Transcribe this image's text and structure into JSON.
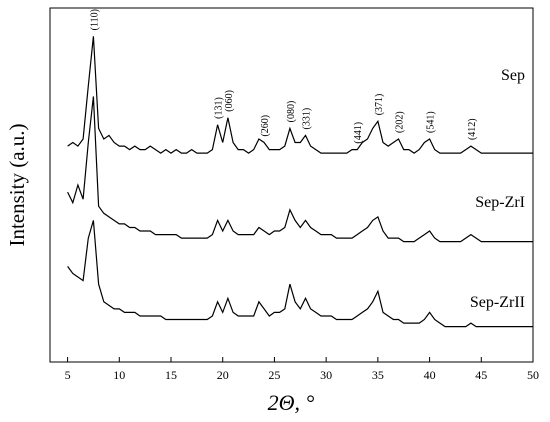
{
  "chart_data": {
    "type": "line",
    "x_label": "2Θ, °",
    "y_label": "Intensity (a.u.)",
    "x": [
      5,
      5.5,
      6,
      6.5,
      7,
      7.5,
      8,
      8.5,
      9,
      9.5,
      10,
      10.5,
      11,
      11.5,
      12,
      12.5,
      13,
      13.5,
      14,
      14.5,
      15,
      15.5,
      16,
      16.5,
      17,
      17.5,
      18,
      18.5,
      19,
      19.5,
      20,
      20.5,
      21,
      21.5,
      22,
      22.5,
      23,
      23.5,
      24,
      24.5,
      25,
      25.5,
      26,
      26.5,
      27,
      27.5,
      28,
      28.5,
      29,
      29.5,
      30,
      30.5,
      31,
      31.5,
      32,
      32.5,
      33,
      33.5,
      34,
      34.5,
      35,
      35.5,
      36,
      36.5,
      37,
      37.5,
      38,
      38.5,
      39,
      39.5,
      40,
      40.5,
      41,
      41.5,
      42,
      42.5,
      43,
      43.5,
      44,
      44.5,
      45,
      45.5,
      46,
      46.5,
      47,
      47.5,
      48,
      48.5,
      49,
      49.5,
      50
    ],
    "series": [
      {
        "name": "Sep",
        "color": "#000000",
        "values": [
          61,
          62,
          61,
          63,
          78,
          92,
          66,
          63,
          64,
          62,
          61,
          61,
          60,
          61,
          60,
          60,
          61,
          60,
          59,
          60,
          59,
          60,
          59,
          59,
          60,
          59,
          59,
          59,
          60,
          67,
          62,
          69,
          62,
          60,
          60,
          59,
          60,
          63,
          62,
          60,
          60,
          60,
          61,
          66,
          62,
          62,
          64,
          61,
          60,
          59,
          59,
          59,
          59,
          59,
          59,
          60,
          60,
          62,
          63,
          66,
          68,
          62,
          61,
          62,
          63,
          60,
          60,
          59,
          60,
          62,
          63,
          60,
          59,
          59,
          59,
          59,
          59,
          60,
          61,
          60,
          59,
          59,
          59,
          59,
          59,
          59,
          59,
          59,
          59,
          59,
          59
        ]
      },
      {
        "name": "Sep-ZrI",
        "color": "#000000",
        "values": [
          48,
          45,
          50,
          46,
          62,
          75,
          44,
          42,
          41,
          40,
          39,
          39,
          38,
          38,
          37,
          37,
          37,
          36,
          36,
          36,
          36,
          36,
          35,
          35,
          35,
          35,
          35,
          35,
          36,
          40,
          37,
          40,
          37,
          36,
          36,
          36,
          36,
          38,
          37,
          36,
          37,
          37,
          38,
          43,
          40,
          38,
          40,
          38,
          37,
          36,
          36,
          36,
          35,
          35,
          35,
          35,
          36,
          37,
          38,
          40,
          41,
          37,
          35,
          35,
          35,
          34,
          34,
          34,
          35,
          36,
          37,
          35,
          34,
          34,
          34,
          34,
          34,
          35,
          36,
          35,
          34,
          34,
          34,
          34,
          34,
          34,
          34,
          34,
          34,
          34,
          34
        ]
      },
      {
        "name": "Sep-ZrII",
        "color": "#000000",
        "values": [
          27,
          25,
          24,
          23,
          35,
          40,
          22,
          17,
          16,
          15,
          15,
          14,
          14,
          14,
          13,
          13,
          13,
          13,
          13,
          12,
          12,
          12,
          12,
          12,
          12,
          12,
          12,
          12,
          13,
          17,
          14,
          18,
          14,
          13,
          13,
          13,
          13,
          17,
          15,
          13,
          14,
          14,
          15,
          22,
          17,
          15,
          18,
          15,
          14,
          13,
          13,
          13,
          12,
          12,
          12,
          12,
          13,
          14,
          15,
          17,
          20,
          14,
          13,
          12,
          12,
          11,
          11,
          11,
          11,
          12,
          14,
          12,
          11,
          10,
          10,
          10,
          10,
          10,
          11,
          10,
          10,
          10,
          10,
          10,
          10,
          10,
          10,
          10,
          10,
          10,
          10
        ]
      }
    ],
    "annotations": [
      {
        "text": "(110)",
        "x": 7.5
      },
      {
        "text": "(131)",
        "x": 19.5
      },
      {
        "text": "(060)",
        "x": 20.5
      },
      {
        "text": "(260)",
        "x": 24
      },
      {
        "text": "(080)",
        "x": 26.5
      },
      {
        "text": "(331)",
        "x": 28
      },
      {
        "text": "(441)",
        "x": 33
      },
      {
        "text": "(371)",
        "x": 35
      },
      {
        "text": "(202)",
        "x": 37
      },
      {
        "text": "(541)",
        "x": 40
      },
      {
        "text": "(412)",
        "x": 44
      }
    ],
    "xlim": [
      3.3,
      50
    ],
    "ylim": [
      0,
      100
    ],
    "xticks": [
      5,
      10,
      15,
      20,
      25,
      30,
      35,
      40,
      45,
      50
    ]
  }
}
